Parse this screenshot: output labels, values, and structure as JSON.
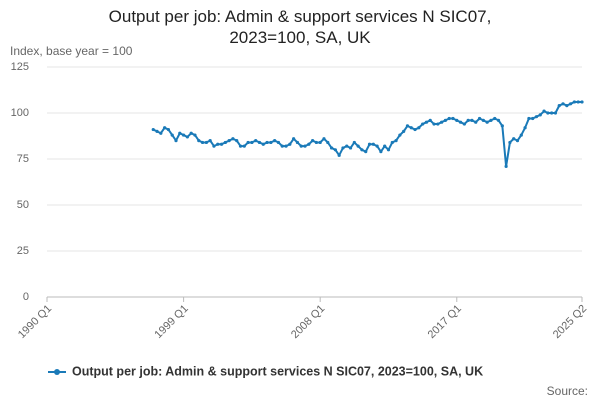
{
  "chart_data": {
    "type": "line",
    "title": "Output per job: Admin & support services N SIC07, 2023=100, SA, UK",
    "y_axis_label": "Index, base year = 100",
    "source": "Source:",
    "categories": [
      "1990 Q1",
      null,
      null,
      null,
      null,
      null,
      null,
      null,
      null,
      null,
      null,
      null,
      null,
      null,
      null,
      null,
      null,
      null,
      null,
      null,
      null,
      null,
      null,
      null,
      null,
      null,
      null,
      null,
      null,
      null,
      null,
      null,
      null,
      null,
      null,
      null,
      "1999 Q1",
      null,
      null,
      null,
      null,
      null,
      null,
      null,
      null,
      null,
      null,
      null,
      null,
      null,
      null,
      null,
      null,
      null,
      null,
      null,
      null,
      null,
      null,
      null,
      null,
      null,
      null,
      null,
      null,
      null,
      null,
      null,
      null,
      null,
      null,
      null,
      "2008 Q1",
      null,
      null,
      null,
      null,
      null,
      null,
      null,
      null,
      null,
      null,
      null,
      null,
      null,
      null,
      null,
      null,
      null,
      null,
      null,
      null,
      null,
      null,
      null,
      null,
      null,
      null,
      null,
      null,
      null,
      null,
      null,
      null,
      null,
      null,
      null,
      "2017 Q1",
      null,
      null,
      null,
      null,
      null,
      null,
      null,
      null,
      null,
      null,
      null,
      null,
      null,
      null,
      null,
      null,
      null,
      null,
      null,
      null,
      null,
      null,
      null,
      null,
      null,
      null,
      null,
      null,
      null,
      null,
      null,
      null,
      "2025 Q2"
    ],
    "series": [
      {
        "name": "Output per job: Admin & support services N SIC07, 2023=100, SA, UK",
        "color": "#1a7ab8",
        "values": [
          null,
          null,
          null,
          null,
          null,
          null,
          null,
          null,
          null,
          null,
          null,
          null,
          null,
          null,
          null,
          null,
          null,
          null,
          null,
          null,
          null,
          null,
          null,
          null,
          null,
          null,
          null,
          null,
          91,
          90,
          89,
          92,
          91,
          88,
          85,
          89,
          88,
          87,
          89,
          88,
          85,
          84,
          84,
          85,
          82,
          83,
          83,
          84,
          85,
          86,
          85,
          82,
          82,
          84,
          84,
          85,
          84,
          83,
          84,
          84,
          85,
          84,
          82,
          82,
          83,
          86,
          84,
          82,
          82,
          83,
          85,
          84,
          84,
          86,
          84,
          81,
          80,
          77,
          81,
          82,
          81,
          84,
          82,
          80,
          79,
          83,
          83,
          82,
          79,
          82,
          80,
          84,
          85,
          88,
          90,
          93,
          92,
          91,
          92,
          94,
          95,
          96,
          94,
          94,
          95,
          96,
          97,
          97,
          96,
          95,
          94,
          96,
          96,
          95,
          97,
          96,
          95,
          96,
          97,
          96,
          93,
          71,
          84,
          86,
          85,
          88,
          92,
          97,
          97,
          98,
          99,
          101,
          100,
          100,
          100,
          104,
          105,
          104,
          105,
          106,
          106,
          106
        ]
      }
    ],
    "ylim": [
      0,
      125
    ],
    "yticks": [
      0,
      25,
      50,
      75,
      100,
      125
    ],
    "grid": true,
    "legend": "bottom"
  }
}
